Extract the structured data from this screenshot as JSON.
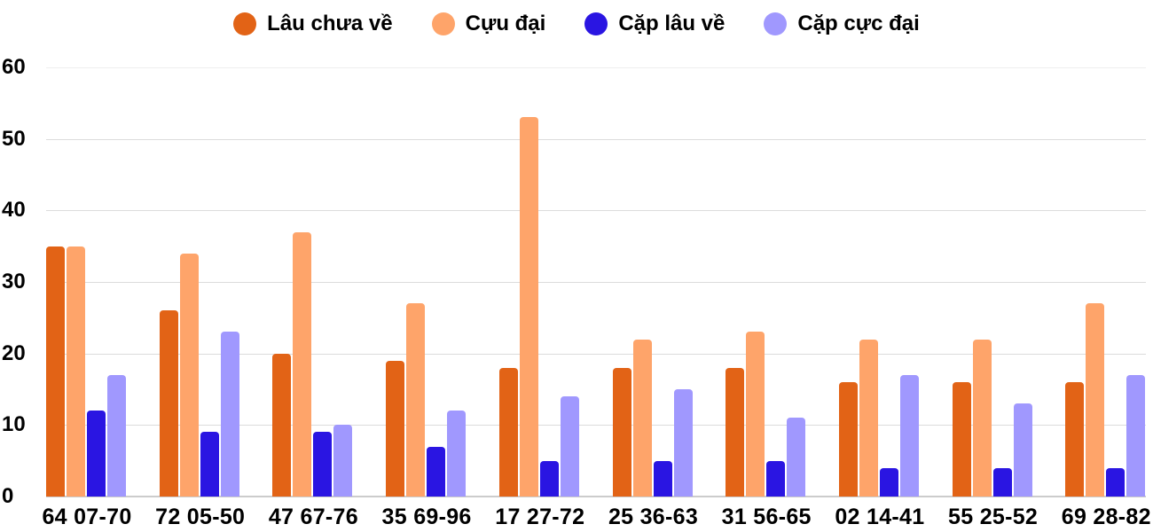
{
  "chart_data": {
    "type": "bar",
    "title": "",
    "xlabel": "",
    "ylabel": "",
    "ylim": [
      0,
      60
    ],
    "yticks": [
      "0",
      "10",
      "20",
      "30",
      "40",
      "50",
      "60"
    ],
    "grid": true,
    "legend_position": "top",
    "categories": [
      "64 07-70",
      "72 05-50",
      "47 67-76",
      "35 69-96",
      "17 27-72",
      "25 36-63",
      "31 56-65",
      "02 14-41",
      "55 25-52",
      "69 28-82"
    ],
    "series": [
      {
        "name": "Lâu chưa về",
        "color": "#E26316",
        "values": [
          35,
          26,
          20,
          19,
          18,
          18,
          18,
          16,
          16,
          16
        ]
      },
      {
        "name": "Cựu đại",
        "color": "#FEA46A",
        "values": [
          35,
          34,
          37,
          27,
          53,
          22,
          23,
          22,
          22,
          27
        ]
      },
      {
        "name": "Cặp lâu về",
        "color": "#2A15E2",
        "values": [
          12,
          9,
          9,
          7,
          5,
          5,
          5,
          4,
          4,
          4
        ]
      },
      {
        "name": "Cặp cực đại",
        "color": "#A098FE",
        "values": [
          17,
          23,
          10,
          12,
          14,
          15,
          11,
          17,
          13,
          17
        ]
      }
    ]
  },
  "legend": {
    "items": [
      {
        "label": "Lâu chưa về",
        "color": "#E26316"
      },
      {
        "label": "Cựu đại",
        "color": "#FEA46A"
      },
      {
        "label": "Cặp lâu về",
        "color": "#2A15E2"
      },
      {
        "label": "Cặp cực đại",
        "color": "#A098FE"
      }
    ]
  }
}
